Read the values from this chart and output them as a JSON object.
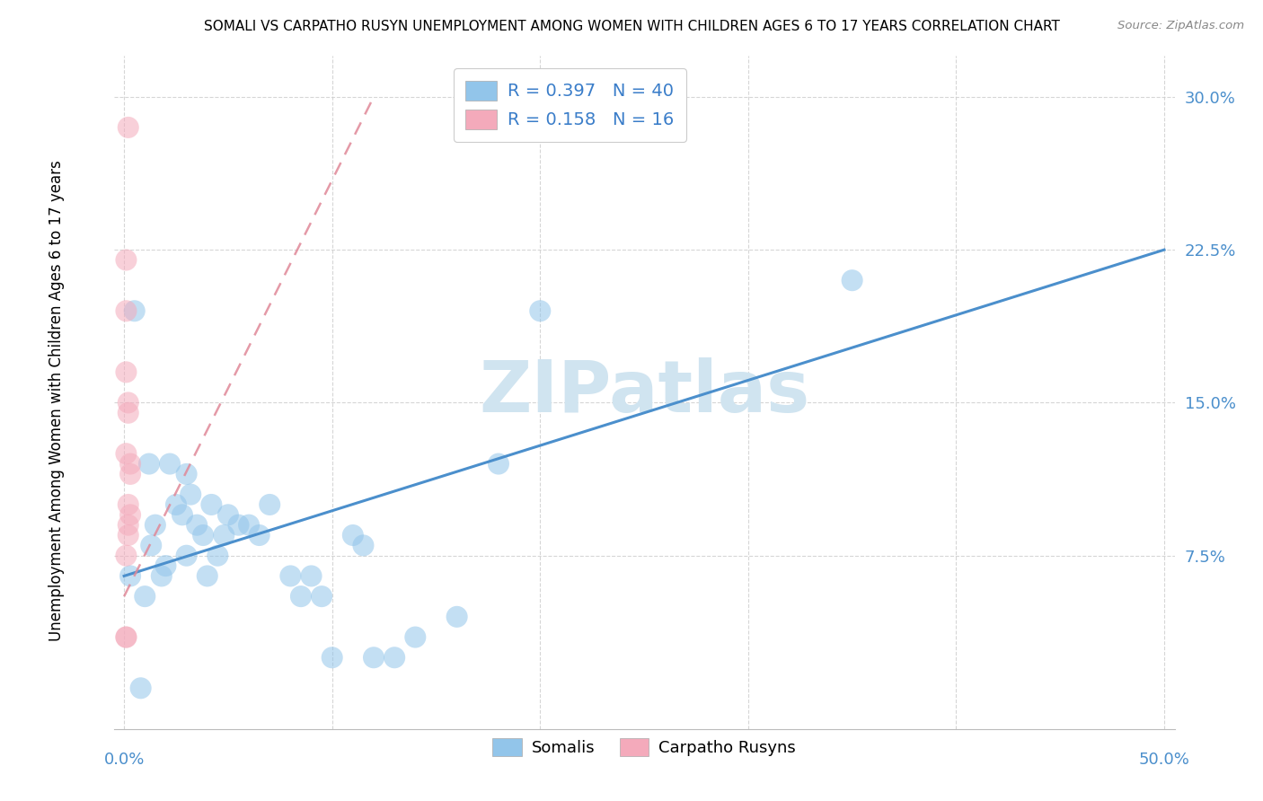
{
  "title": "SOMALI VS CARPATHO RUSYN UNEMPLOYMENT AMONG WOMEN WITH CHILDREN AGES 6 TO 17 YEARS CORRELATION CHART",
  "source": "Source: ZipAtlas.com",
  "ylabel": "Unemployment Among Women with Children Ages 6 to 17 years",
  "xlim": [
    -0.005,
    0.505
  ],
  "ylim": [
    -0.01,
    0.32
  ],
  "xticks": [
    0.0,
    0.1,
    0.2,
    0.3,
    0.4,
    0.5
  ],
  "xticklabels_show": [
    "0.0%",
    "50.0%"
  ],
  "xticklabels_show_pos": [
    0.0,
    0.5
  ],
  "ytick_positions": [
    0.075,
    0.15,
    0.225,
    0.3
  ],
  "ytick_labels": [
    "7.5%",
    "15.0%",
    "22.5%",
    "30.0%"
  ],
  "somali_color": "#92C5EA",
  "carpatho_color": "#F4AABB",
  "somali_line_color": "#4B8FCC",
  "carpatho_line_color": "#E08898",
  "watermark_color": "#D0E4F0",
  "somali_x": [
    0.005,
    0.008,
    0.01,
    0.012,
    0.013,
    0.015,
    0.018,
    0.02,
    0.022,
    0.025,
    0.028,
    0.03,
    0.03,
    0.032,
    0.035,
    0.038,
    0.04,
    0.042,
    0.045,
    0.048,
    0.05,
    0.055,
    0.06,
    0.065,
    0.07,
    0.08,
    0.085,
    0.09,
    0.095,
    0.1,
    0.11,
    0.115,
    0.12,
    0.13,
    0.14,
    0.16,
    0.18,
    0.2,
    0.35,
    0.003
  ],
  "somali_y": [
    0.195,
    0.01,
    0.055,
    0.12,
    0.08,
    0.09,
    0.065,
    0.07,
    0.12,
    0.1,
    0.095,
    0.075,
    0.115,
    0.105,
    0.09,
    0.085,
    0.065,
    0.1,
    0.075,
    0.085,
    0.095,
    0.09,
    0.09,
    0.085,
    0.1,
    0.065,
    0.055,
    0.065,
    0.055,
    0.025,
    0.085,
    0.08,
    0.025,
    0.025,
    0.035,
    0.045,
    0.12,
    0.195,
    0.21,
    0.065
  ],
  "carpatho_x": [
    0.002,
    0.001,
    0.001,
    0.001,
    0.002,
    0.002,
    0.001,
    0.003,
    0.003,
    0.002,
    0.003,
    0.002,
    0.002,
    0.001,
    0.001,
    0.001
  ],
  "carpatho_y": [
    0.285,
    0.22,
    0.195,
    0.165,
    0.15,
    0.145,
    0.125,
    0.12,
    0.115,
    0.1,
    0.095,
    0.09,
    0.085,
    0.075,
    0.035,
    0.035
  ],
  "somali_trend_x": [
    0.0,
    0.5
  ],
  "somali_trend_y": [
    0.065,
    0.225
  ],
  "carpatho_trend_x": [
    0.0,
    0.12
  ],
  "carpatho_trend_y": [
    0.055,
    0.3
  ],
  "legend_R_somali": "0.397",
  "legend_N_somali": "40",
  "legend_R_carpatho": "0.158",
  "legend_N_carpatho": "16"
}
